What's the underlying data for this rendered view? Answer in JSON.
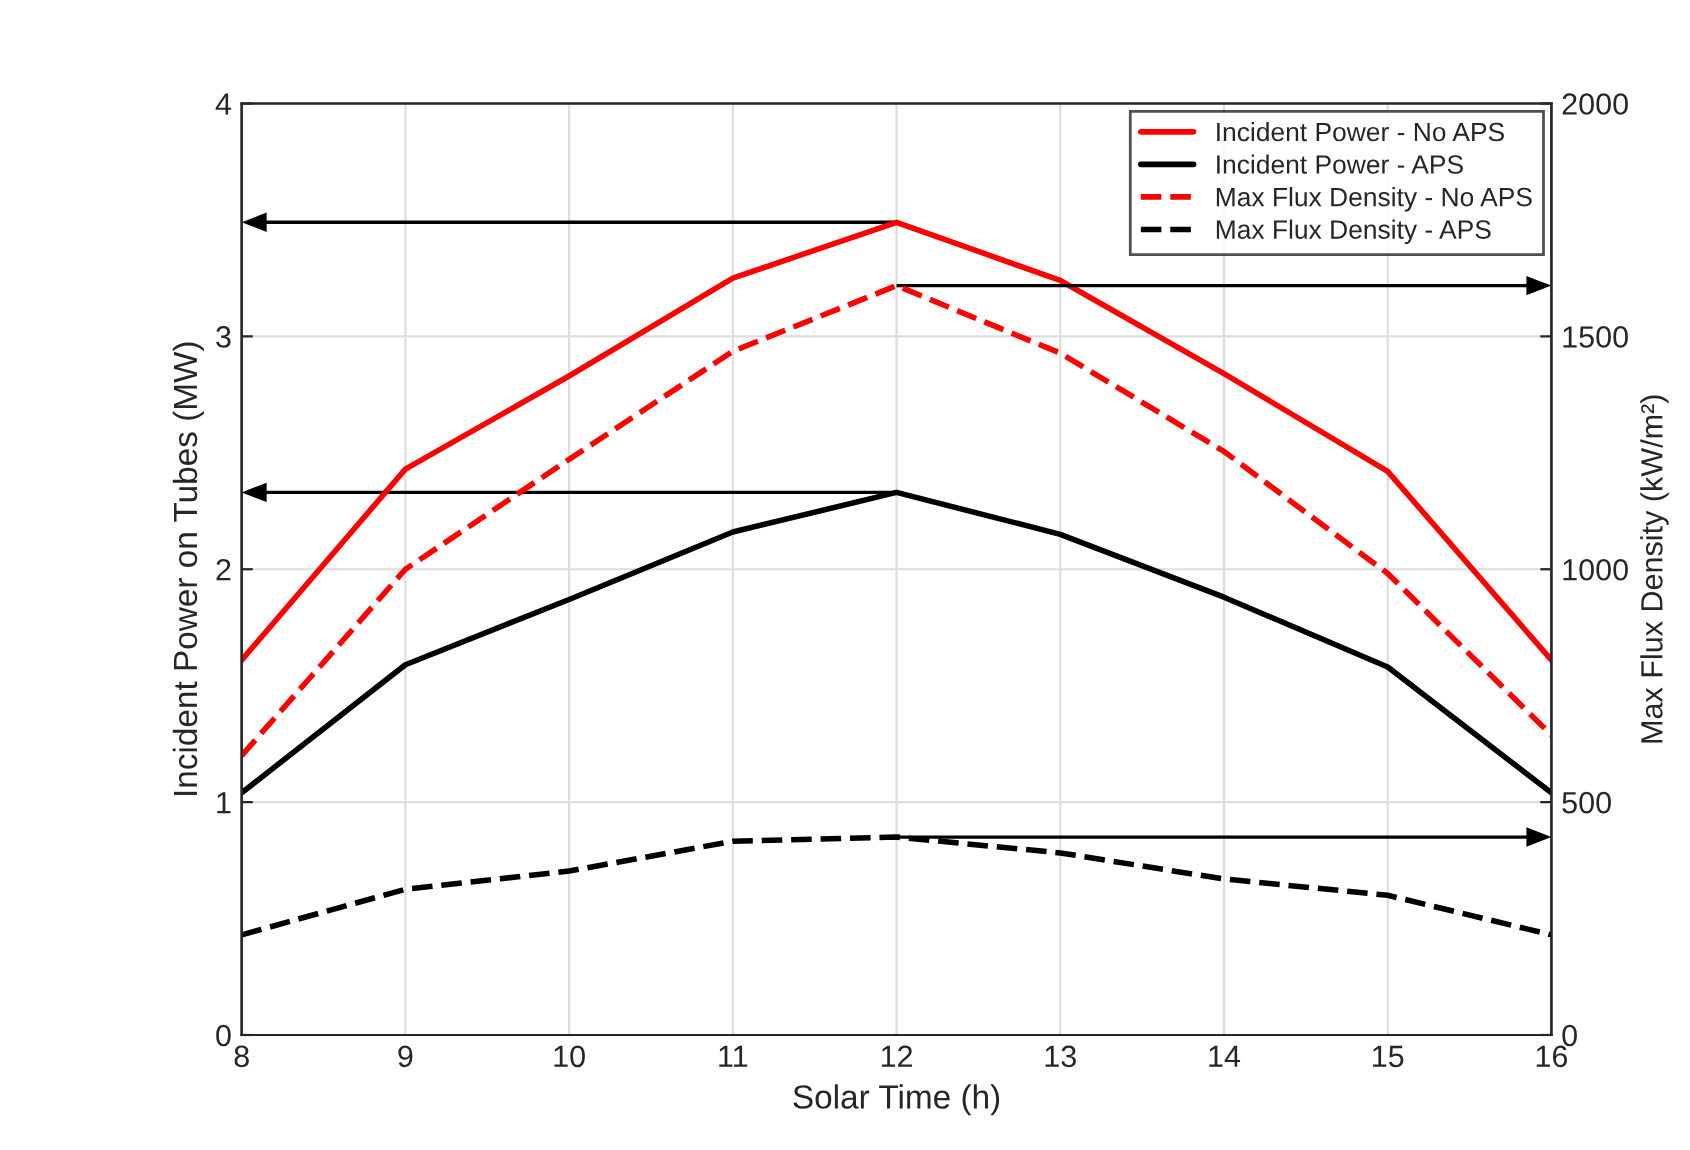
{
  "chart_data": {
    "type": "line",
    "xlabel": "Solar Time (h)",
    "ylabel": "Incident Power on Tubes (MW)",
    "y2label": "Max Flux Density (kW/m²)",
    "x": [
      8,
      9,
      10,
      11,
      12,
      13,
      14,
      15,
      16
    ],
    "series": [
      {
        "name": "Incident Power - No APS",
        "color": "#ff0000",
        "line_style": "solid",
        "values": [
          1.61,
          2.43,
          2.83,
          3.25,
          3.49,
          3.24,
          2.84,
          2.42,
          1.61
        ]
      },
      {
        "name": "Incident Power - APS",
        "color": "#000000",
        "line_style": "solid",
        "values": [
          1.04,
          1.59,
          1.87,
          2.16,
          2.33,
          2.15,
          1.88,
          1.58,
          1.04
        ]
      },
      {
        "name": "Max Flux Density - No APS",
        "color": "#ff0000",
        "line_style": "dashed",
        "axis": "y2",
        "values": [
          600,
          1000,
          1236,
          1468,
          1609,
          1464,
          1253,
          991,
          644
        ]
      },
      {
        "name": "Max Flux Density - APS",
        "color": "#000000",
        "line_style": "dashed",
        "axis": "y2",
        "values": [
          215,
          313,
          352,
          416,
          425,
          391,
          335,
          300,
          215
        ]
      }
    ],
    "xlim": [
      8,
      16
    ],
    "xticks": [
      8,
      9,
      10,
      11,
      12,
      13,
      14,
      15,
      16
    ],
    "ylim": [
      0,
      4
    ],
    "yticks": [
      0,
      1,
      2,
      3,
      4
    ],
    "y2lim": [
      0,
      2000
    ],
    "y2ticks": [
      0,
      500,
      1000,
      1500,
      2000
    ],
    "grid": true,
    "legend": "top right",
    "marker": "none"
  }
}
